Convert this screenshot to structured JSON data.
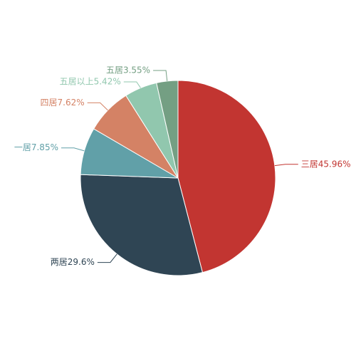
{
  "chart_data": {
    "type": "pie",
    "categories": [
      "三居",
      "两居",
      "一居",
      "四居",
      "五居以上",
      "五居"
    ],
    "values": [
      45.96,
      29.6,
      7.85,
      7.62,
      5.42,
      3.55
    ],
    "value_labels": [
      "三居45.96%",
      "两居29.6%",
      "一居7.85%",
      "四居7.62%",
      "五居以上5.42%",
      "五居3.55%"
    ],
    "colors": [
      "#c23531",
      "#2f4554",
      "#61a0a8",
      "#d48265",
      "#91c7ae",
      "#749f83"
    ]
  }
}
